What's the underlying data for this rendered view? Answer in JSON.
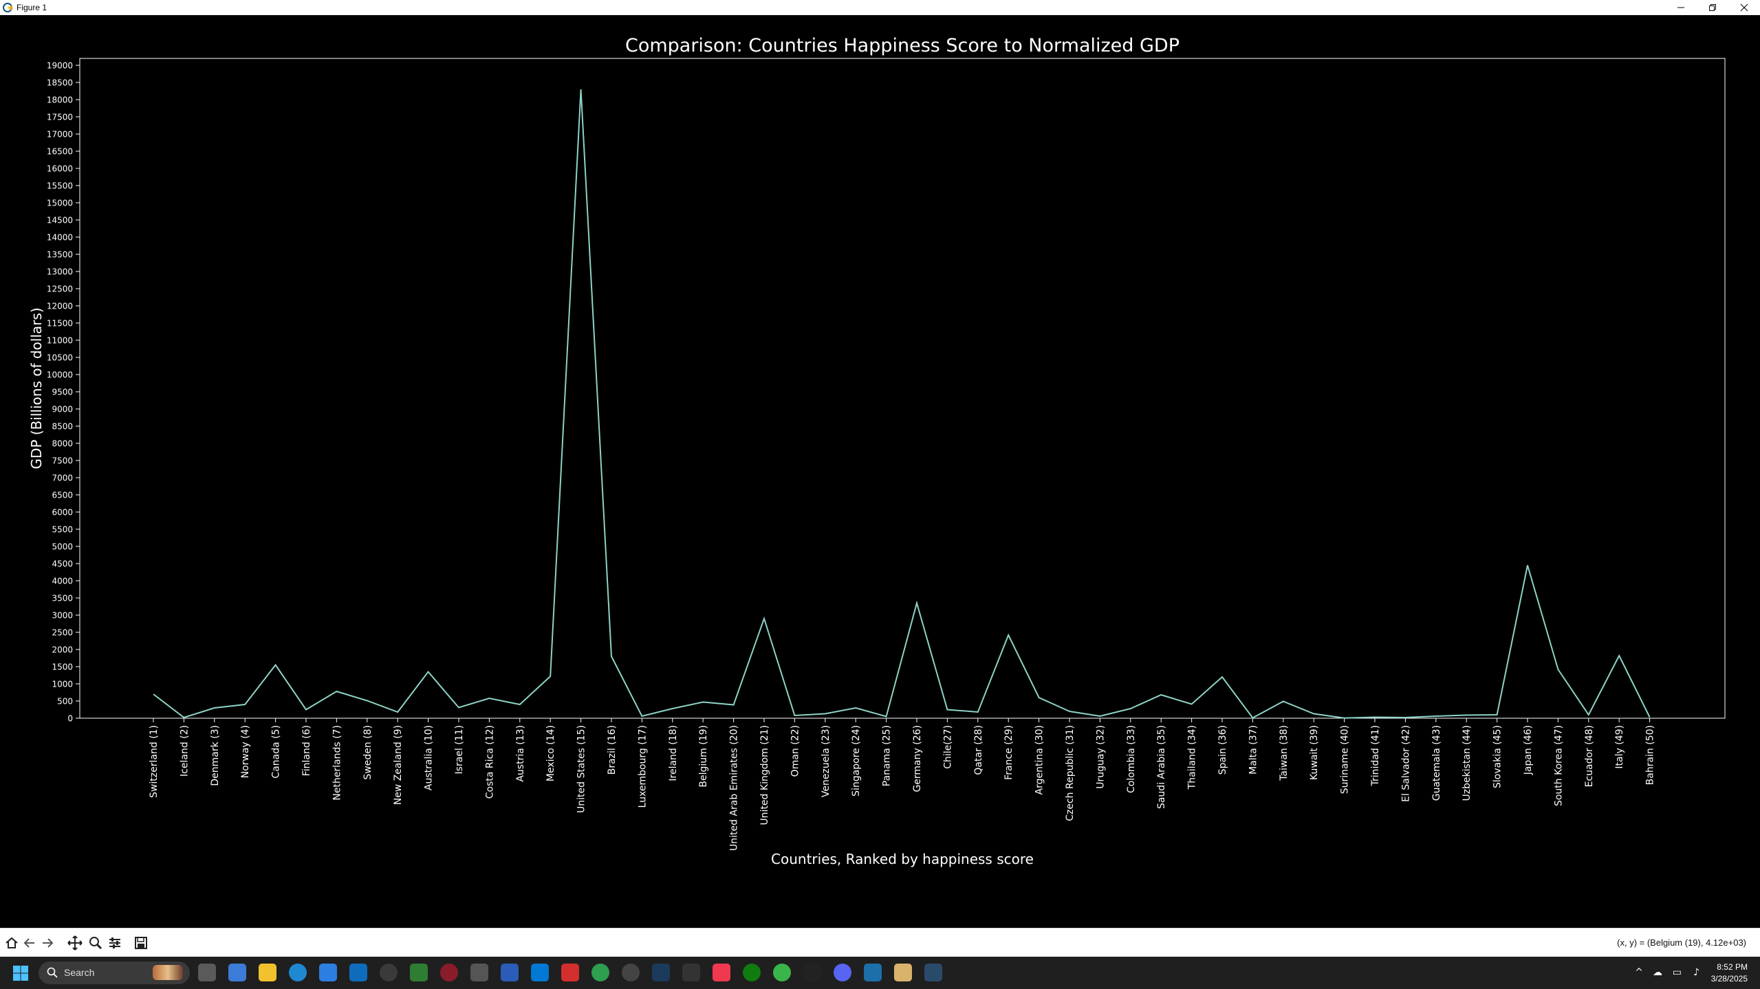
{
  "window": {
    "title": "Figure 1",
    "icons": [
      "matplotlib-icon",
      "minimize-icon",
      "restore-icon",
      "close-icon"
    ]
  },
  "chart_data": {
    "type": "line",
    "title": "Comparison: Countries Happiness Score to Normalized GDP",
    "xlabel": "Countries, Ranked by happiness score",
    "ylabel": "GDP (Billions of dollars)",
    "ylim": [
      0,
      19200
    ],
    "yticks": [
      0,
      500,
      1000,
      1500,
      2000,
      2500,
      3000,
      3500,
      4000,
      4500,
      5000,
      5500,
      6000,
      6500,
      7000,
      7500,
      8000,
      8500,
      9000,
      9500,
      10000,
      10500,
      11000,
      11500,
      12000,
      12500,
      13000,
      13500,
      14000,
      14500,
      15000,
      15500,
      16000,
      16500,
      17000,
      17500,
      18000,
      18500,
      19000
    ],
    "grid": false,
    "line_color": "#8dd3c7",
    "background": "#000000",
    "categories": [
      "Switzerland (1)",
      "Iceland (2)",
      "Denmark (3)",
      "Norway (4)",
      "Canada (5)",
      "Finland (6)",
      "Netherlands (7)",
      "Sweden (8)",
      "New Zealand (9)",
      "Australia (10)",
      "Israel (11)",
      "Costa Rica (12)",
      "Austria (13)",
      "Mexico (14)",
      "United States (15)",
      "Brazil (16)",
      "Luxembourg (17)",
      "Ireland (18)",
      "Belgium (19)",
      "United Arab Emirates (20)",
      "United Kingdom (21)",
      "Oman (22)",
      "Venezuela (23)",
      "Singapore (24)",
      "Panama (25)",
      "Germany (26)",
      "Chile(27)",
      "Qatar (28)",
      "France (29)",
      "Argentina (30)",
      "Czech Republic (31)",
      "Uruguay (32)",
      "Colombia (33)",
      "Saudi Arabia (35)",
      "Thailand (34)",
      "Spain (36)",
      "Malta (37)",
      "Taiwan (38)",
      "Kuwait (39)",
      "Suriname (40)",
      "Trinidad (41)",
      "El Salvador (42)",
      "Guatemala (43)",
      "Uzbekistan (44)",
      "Slovakia (45)",
      "Japan (46)",
      "South Korea (47)",
      "Ecuador (48)",
      "Italy (49)",
      "Bahrain (50)"
    ],
    "values": [
      700,
      20,
      300,
      400,
      1550,
      250,
      780,
      510,
      180,
      1350,
      310,
      580,
      400,
      1220,
      18300,
      1800,
      60,
      280,
      470,
      390,
      2900,
      80,
      130,
      300,
      50,
      3350,
      250,
      180,
      2420,
      600,
      200,
      60,
      280,
      680,
      410,
      1200,
      10,
      490,
      130,
      5,
      30,
      20,
      60,
      90,
      100,
      4450,
      1420,
      100,
      1820,
      30
    ]
  },
  "toolbar": {
    "buttons": [
      "home-icon",
      "back-icon",
      "forward-icon",
      "pan-icon",
      "zoom-icon",
      "configure-icon",
      "save-icon"
    ],
    "coords_text": "(x, y) = (Belgium (19), 4.12e+03)"
  },
  "taskbar": {
    "search_label": "Search",
    "date": "3/28/2025",
    "time": "8:52 PM"
  }
}
